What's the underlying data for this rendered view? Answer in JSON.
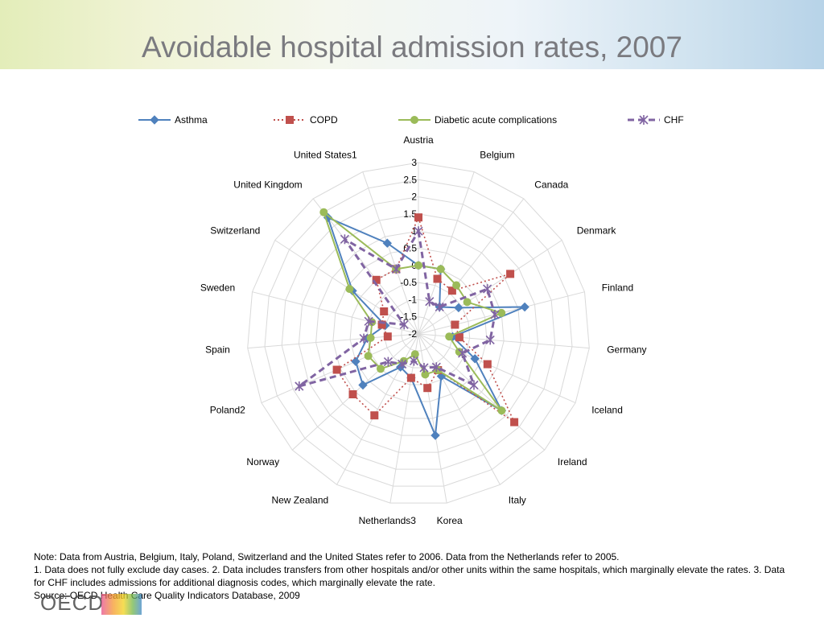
{
  "page": {
    "title": "Avoidable hospital admission rates, 2007",
    "notes": [
      "Note: Data from Austria, Belgium, Italy, Poland, Switzerland and the United States refer to 2006. Data from the Netherlands refer to 2005.",
      "1. Data does not fully exclude day cases. 2. Data includes transfers from other hospitals and/or other units within the same hospitals, which marginally elevate the rates. 3. Data for CHF includes admissions for additional diagnosis codes, which marginally elevate the rate.",
      "Source: OECD Health Care Quality Indicators Database, 2009"
    ],
    "logo_text": "OECD"
  },
  "chart_data": {
    "type": "radar",
    "categories": [
      "Austria",
      "Belgium",
      "Canada",
      "Denmark",
      "Finland",
      "Germany",
      "Iceland",
      "Ireland",
      "Italy",
      "Korea",
      "Netherlands3",
      "New Zealand",
      "Norway",
      "Poland2",
      "Spain",
      "Sweden",
      "Switzerland",
      "United Kingdom",
      "United States1"
    ],
    "rlim": [
      -2,
      3
    ],
    "ticks": [
      "-2",
      "-1.5",
      "-1",
      "-0.5",
      "0",
      "0.5",
      "1",
      "1.5",
      "2",
      "2.5",
      "3"
    ],
    "grid": true,
    "legend_position": "top",
    "series": [
      {
        "name": "Asthma",
        "color": "#4f81bd",
        "line": "solid",
        "marker": "diamond",
        "values": [
          0.0,
          0.0,
          -1.0,
          -0.6,
          1.2,
          -1.0,
          -0.2,
          1.3,
          -0.6,
          1.0,
          -0.7,
          -0.9,
          0.2,
          0.0,
          -0.5,
          -1.0,
          0.3,
          2.3,
          0.8
        ]
      },
      {
        "name": "COPD",
        "color": "#c0504d",
        "line": "dotted",
        "marker": "square",
        "values": [
          1.4,
          -0.3,
          -0.4,
          1.2,
          -0.9,
          -0.8,
          0.2,
          1.8,
          -0.8,
          -0.4,
          -0.7,
          0.7,
          0.6,
          0.6,
          -1.1,
          -0.9,
          -0.8,
          0.0,
          0.0
        ]
      },
      {
        "name": "Diabetic acute complications",
        "color": "#9bbb59",
        "line": "solid",
        "marker": "circle",
        "values": [
          0.0,
          0.0,
          -0.2,
          -0.3,
          0.5,
          -1.1,
          -0.7,
          1.3,
          -0.8,
          -0.8,
          -1.4,
          -1.1,
          -0.5,
          -0.4,
          -0.6,
          -0.6,
          0.4,
          2.5,
          0.0
        ]
      },
      {
        "name": "CHF",
        "color": "#8064a2",
        "line": "dashed",
        "marker": "star",
        "values": [
          1.0,
          -1.0,
          -1.0,
          0.4,
          0.3,
          0.1,
          -0.6,
          0.2,
          -0.9,
          -1.0,
          -1.2,
          -1.0,
          -0.8,
          1.8,
          -0.4,
          -0.5,
          -1.5,
          1.5,
          0.0
        ]
      }
    ]
  }
}
